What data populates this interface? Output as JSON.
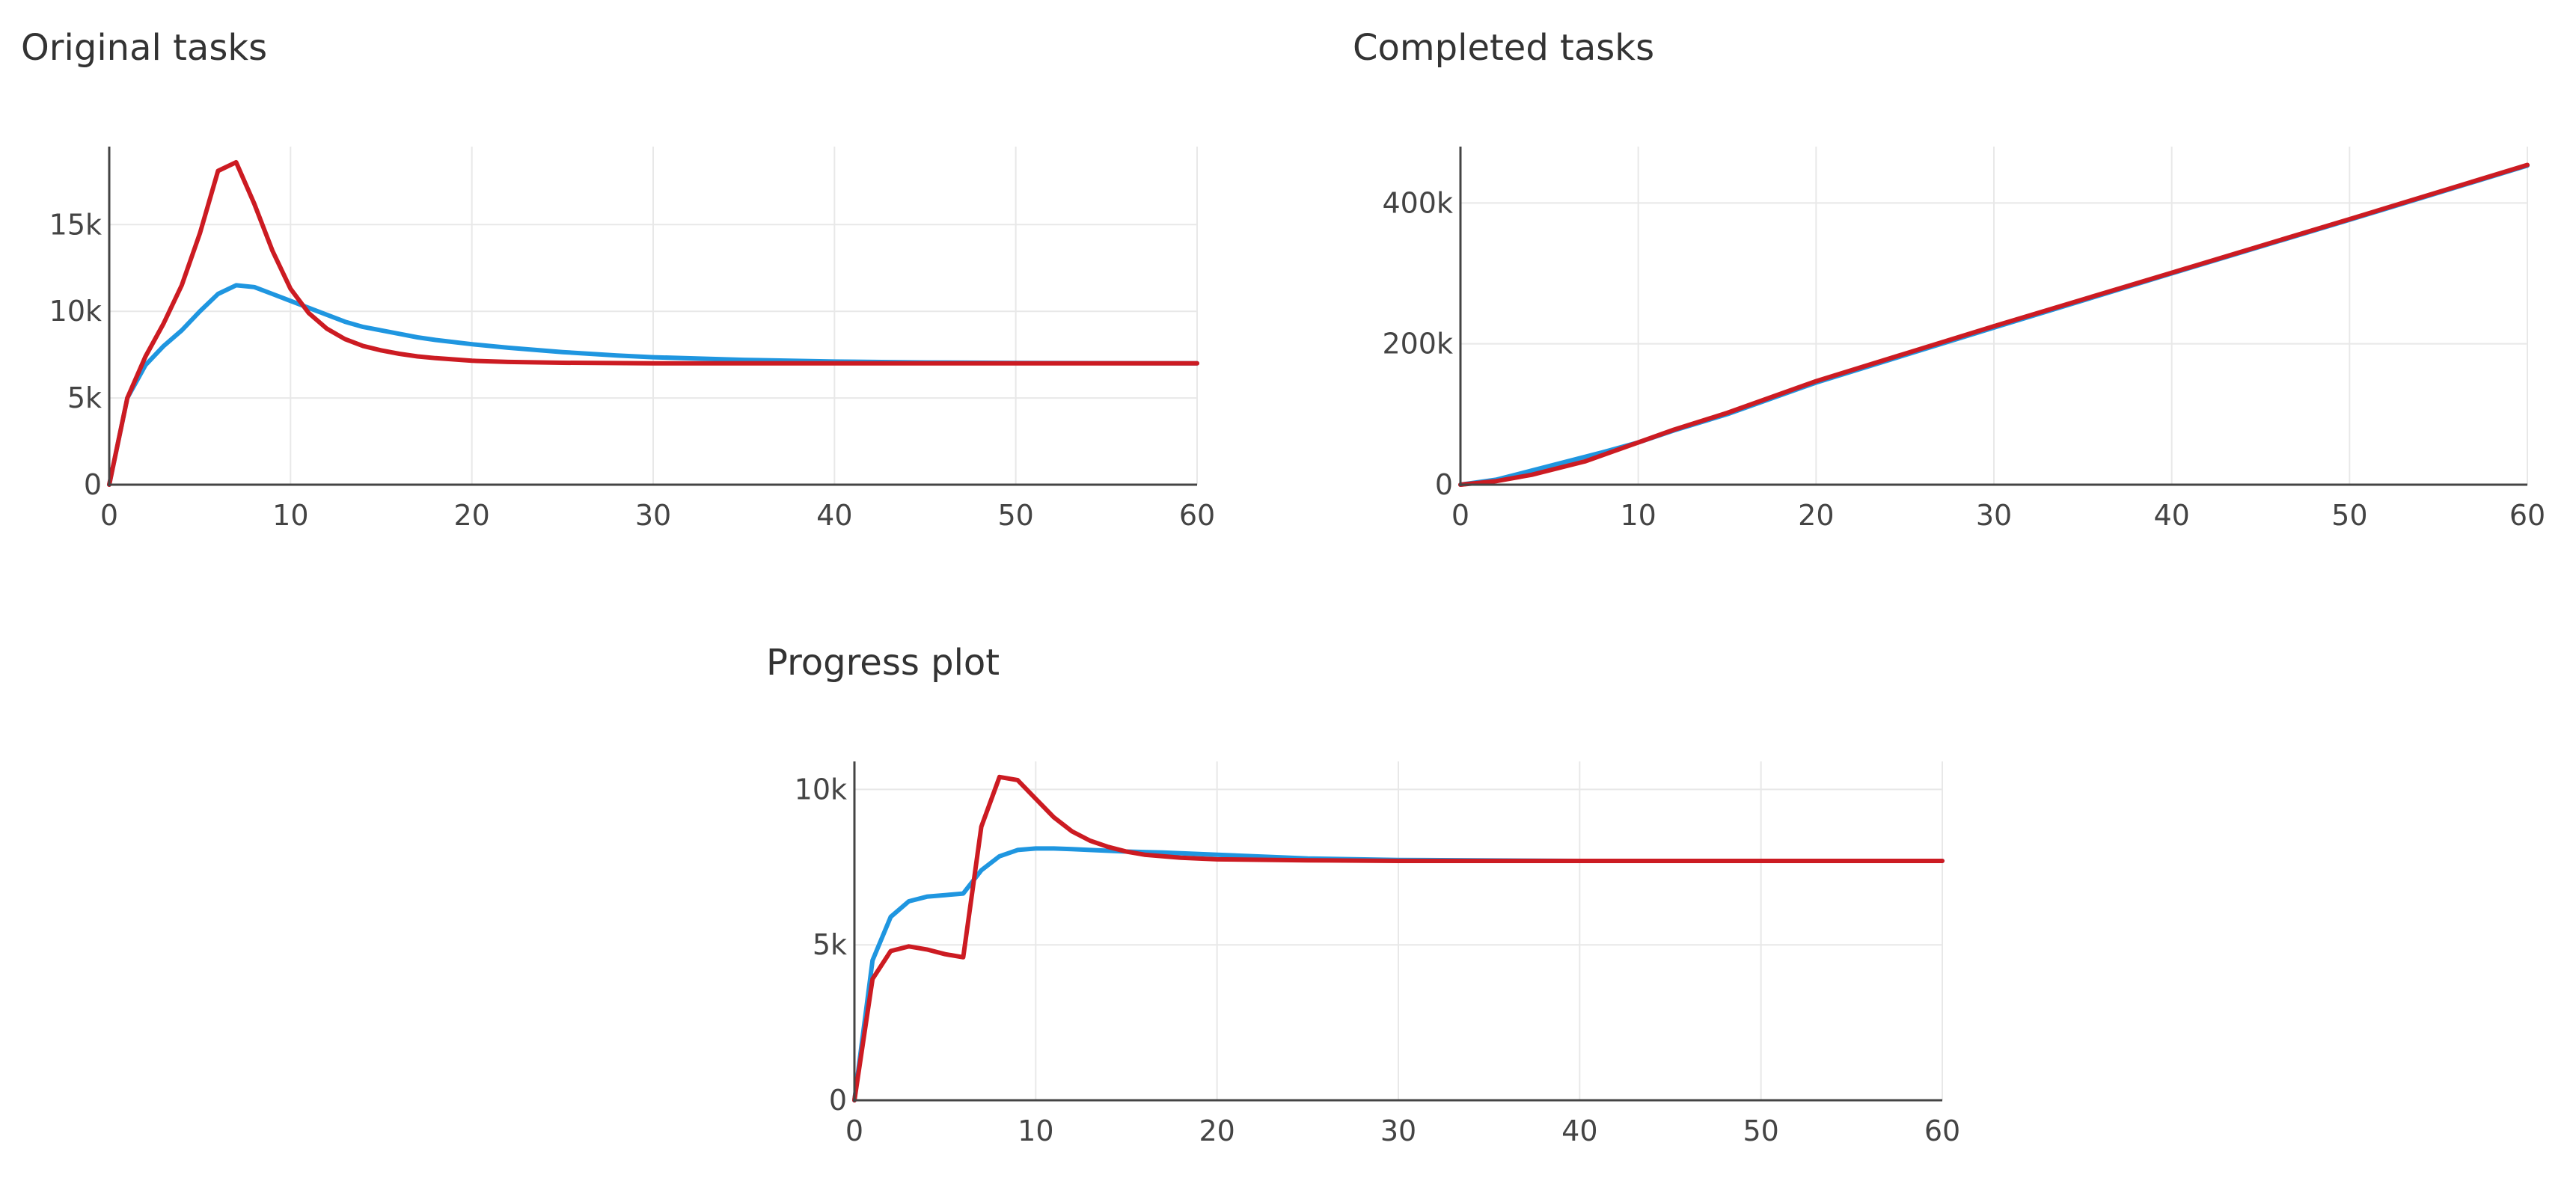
{
  "chart_data": [
    {
      "type": "line",
      "title": "Original tasks",
      "xlabel": "",
      "ylabel": "",
      "xlim": [
        0,
        60
      ],
      "ylim": [
        0,
        19500
      ],
      "x_ticks": [
        0,
        10,
        20,
        30,
        40,
        50,
        60
      ],
      "x_tick_labels": [
        "0",
        "10",
        "20",
        "30",
        "40",
        "50",
        "60"
      ],
      "y_ticks": [
        0,
        5000,
        10000,
        15000
      ],
      "y_tick_labels": [
        "0",
        "5k",
        "10k",
        "15k"
      ],
      "grid": true,
      "legend": "none",
      "series": [
        {
          "color": "#1f96e0",
          "points": [
            [
              0,
              0
            ],
            [
              1,
              5000
            ],
            [
              2,
              6900
            ],
            [
              3,
              8000
            ],
            [
              4,
              8900
            ],
            [
              5,
              10000
            ],
            [
              6,
              11000
            ],
            [
              7,
              11500
            ],
            [
              8,
              11400
            ],
            [
              9,
              11000
            ],
            [
              10,
              10600
            ],
            [
              11,
              10200
            ],
            [
              12,
              9800
            ],
            [
              13,
              9400
            ],
            [
              14,
              9100
            ],
            [
              15,
              8900
            ],
            [
              16,
              8700
            ],
            [
              17,
              8500
            ],
            [
              18,
              8350
            ],
            [
              20,
              8100
            ],
            [
              22,
              7900
            ],
            [
              25,
              7650
            ],
            [
              28,
              7450
            ],
            [
              30,
              7350
            ],
            [
              35,
              7200
            ],
            [
              40,
              7100
            ],
            [
              45,
              7050
            ],
            [
              50,
              7020
            ],
            [
              60,
              7000
            ]
          ]
        },
        {
          "color": "#cc1b22",
          "points": [
            [
              0,
              0
            ],
            [
              1,
              5000
            ],
            [
              2,
              7400
            ],
            [
              3,
              9300
            ],
            [
              4,
              11500
            ],
            [
              5,
              14500
            ],
            [
              6,
              18100
            ],
            [
              7,
              18600
            ],
            [
              8,
              16200
            ],
            [
              9,
              13500
            ],
            [
              10,
              11300
            ],
            [
              11,
              9900
            ],
            [
              12,
              9000
            ],
            [
              13,
              8400
            ],
            [
              14,
              8000
            ],
            [
              15,
              7750
            ],
            [
              16,
              7550
            ],
            [
              17,
              7400
            ],
            [
              18,
              7300
            ],
            [
              20,
              7150
            ],
            [
              22,
              7080
            ],
            [
              25,
              7030
            ],
            [
              30,
              7000
            ],
            [
              40,
              7000
            ],
            [
              50,
              7000
            ],
            [
              60,
              7000
            ]
          ]
        }
      ]
    },
    {
      "type": "line",
      "title": "Completed tasks",
      "xlabel": "",
      "ylabel": "",
      "xlim": [
        0,
        60
      ],
      "ylim": [
        0,
        480000
      ],
      "x_ticks": [
        0,
        10,
        20,
        30,
        40,
        50,
        60
      ],
      "x_tick_labels": [
        "0",
        "10",
        "20",
        "30",
        "40",
        "50",
        "60"
      ],
      "y_ticks": [
        0,
        200000,
        400000
      ],
      "y_tick_labels": [
        "0",
        "200k",
        "400k"
      ],
      "grid": true,
      "legend": "none",
      "series": [
        {
          "color": "#1f96e0",
          "points": [
            [
              0,
              0
            ],
            [
              2,
              7000
            ],
            [
              4,
              20000
            ],
            [
              6,
              33000
            ],
            [
              8,
              46000
            ],
            [
              10,
              60000
            ],
            [
              12,
              77000
            ],
            [
              15,
              100000
            ],
            [
              20,
              145000
            ],
            [
              30,
              223000
            ],
            [
              40,
              300000
            ],
            [
              50,
              376000
            ],
            [
              60,
              453000
            ]
          ]
        },
        {
          "color": "#cc1b22",
          "points": [
            [
              0,
              0
            ],
            [
              2,
              5000
            ],
            [
              4,
              14000
            ],
            [
              7,
              33000
            ],
            [
              10,
              60000
            ],
            [
              12,
              78000
            ],
            [
              15,
              102000
            ],
            [
              20,
              147000
            ],
            [
              30,
              225000
            ],
            [
              40,
              301000
            ],
            [
              50,
              377000
            ],
            [
              60,
              454000
            ]
          ]
        }
      ]
    },
    {
      "type": "line",
      "title": "Progress plot",
      "xlabel": "",
      "ylabel": "",
      "xlim": [
        0,
        60
      ],
      "ylim": [
        0,
        10900
      ],
      "x_ticks": [
        0,
        10,
        20,
        30,
        40,
        50,
        60
      ],
      "x_tick_labels": [
        "0",
        "10",
        "20",
        "30",
        "40",
        "50",
        "60"
      ],
      "y_ticks": [
        0,
        5000,
        10000
      ],
      "y_tick_labels": [
        "0",
        "5k",
        "10k"
      ],
      "grid": true,
      "legend": "none",
      "series": [
        {
          "color": "#1f96e0",
          "points": [
            [
              0,
              0
            ],
            [
              1,
              4500
            ],
            [
              2,
              5900
            ],
            [
              3,
              6400
            ],
            [
              4,
              6550
            ],
            [
              5,
              6600
            ],
            [
              6,
              6650
            ],
            [
              7,
              7400
            ],
            [
              8,
              7850
            ],
            [
              9,
              8050
            ],
            [
              10,
              8100
            ],
            [
              11,
              8100
            ],
            [
              12,
              8080
            ],
            [
              13,
              8050
            ],
            [
              15,
              8000
            ],
            [
              17,
              7970
            ],
            [
              20,
              7900
            ],
            [
              25,
              7780
            ],
            [
              30,
              7730
            ],
            [
              40,
              7700
            ],
            [
              50,
              7700
            ],
            [
              60,
              7700
            ]
          ]
        },
        {
          "color": "#cc1b22",
          "points": [
            [
              0,
              0
            ],
            [
              1,
              3900
            ],
            [
              2,
              4800
            ],
            [
              3,
              4950
            ],
            [
              4,
              4850
            ],
            [
              5,
              4700
            ],
            [
              6,
              4600
            ],
            [
              7,
              8800
            ],
            [
              8,
              10400
            ],
            [
              9,
              10300
            ],
            [
              10,
              9700
            ],
            [
              11,
              9100
            ],
            [
              12,
              8650
            ],
            [
              13,
              8350
            ],
            [
              14,
              8150
            ],
            [
              15,
              8000
            ],
            [
              16,
              7900
            ],
            [
              18,
              7800
            ],
            [
              20,
              7750
            ],
            [
              25,
              7720
            ],
            [
              30,
              7700
            ],
            [
              40,
              7700
            ],
            [
              50,
              7700
            ],
            [
              60,
              7700
            ]
          ]
        }
      ]
    }
  ]
}
